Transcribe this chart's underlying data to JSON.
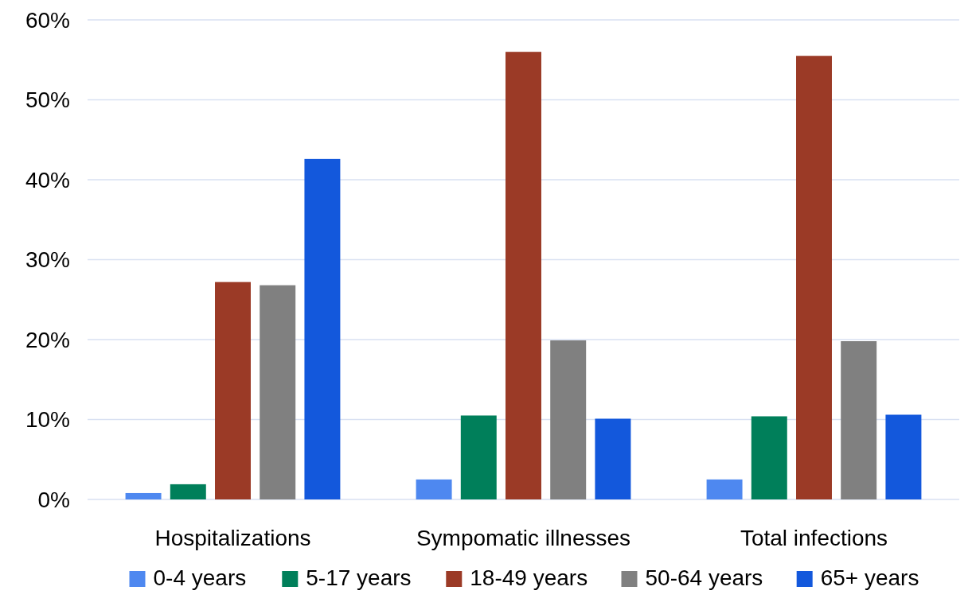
{
  "chart_data": {
    "type": "bar",
    "categories": [
      "Hospitalizations",
      "Sympomatic illnesses",
      "Total infections"
    ],
    "series": [
      {
        "name": "0-4 years",
        "color": "#4e88f0",
        "values": [
          0.8,
          2.5,
          2.5
        ]
      },
      {
        "name": "5-17 years",
        "color": "#007f5a",
        "values": [
          1.9,
          10.5,
          10.4
        ]
      },
      {
        "name": "18-49 years",
        "color": "#9b3a26",
        "values": [
          27.2,
          56.0,
          55.5
        ]
      },
      {
        "name": "50-64 years",
        "color": "#808080",
        "values": [
          26.8,
          19.9,
          19.8
        ]
      },
      {
        "name": "65+ years",
        "color": "#1358dc",
        "values": [
          42.6,
          10.1,
          10.6
        ]
      }
    ],
    "ylim": [
      0,
      60
    ],
    "yticks": [
      {
        "value": 0,
        "label": "0%"
      },
      {
        "value": 10,
        "label": "10%"
      },
      {
        "value": 20,
        "label": "20%"
      },
      {
        "value": 30,
        "label": "30%"
      },
      {
        "value": 40,
        "label": "40%"
      },
      {
        "value": 50,
        "label": "50%"
      },
      {
        "value": 60,
        "label": "60%"
      }
    ],
    "grid": "y",
    "legend": "bottom"
  }
}
